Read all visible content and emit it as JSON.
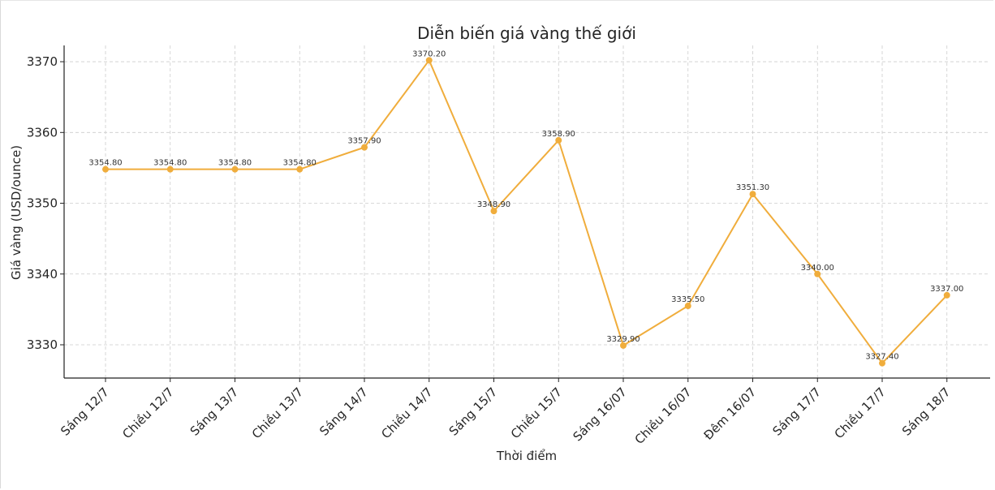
{
  "chart_data": {
    "type": "line",
    "title": "Diễn biến giá vàng thế giới",
    "xlabel": "Thời điểm",
    "ylabel": "Giá vàng (USD/ounce)",
    "categories": [
      "Sáng 12/7",
      "Chiều 12/7",
      "Sáng 13/7",
      "Chiều 13/7",
      "Sáng 14/7",
      "Chiều 14/7",
      "Sáng 15/7",
      "Chiều 15/7",
      "Sáng 16/07",
      "Chiều 16/07",
      "Đêm 16/07",
      "Sáng 17/7",
      "Chiều 17/7",
      "Sáng 18/7"
    ],
    "values": [
      3354.8,
      3354.8,
      3354.8,
      3354.8,
      3357.9,
      3370.2,
      3348.9,
      3358.9,
      3329.9,
      3335.5,
      3351.3,
      3340.0,
      3327.4,
      3337.0
    ],
    "data_labels": [
      "3354.80",
      "3354.80",
      "3354.80",
      "3354.80",
      "3357.90",
      "3370.20",
      "3348.90",
      "3358.90",
      "3329.90",
      "3335.50",
      "3351.30",
      "3340.00",
      "3327.40",
      "3337.00"
    ],
    "ylim": [
      3325.3,
      3372.3
    ],
    "yticks": [
      3330,
      3340,
      3350,
      3360,
      3370
    ],
    "grid": true,
    "color": "#f0ad3c"
  }
}
